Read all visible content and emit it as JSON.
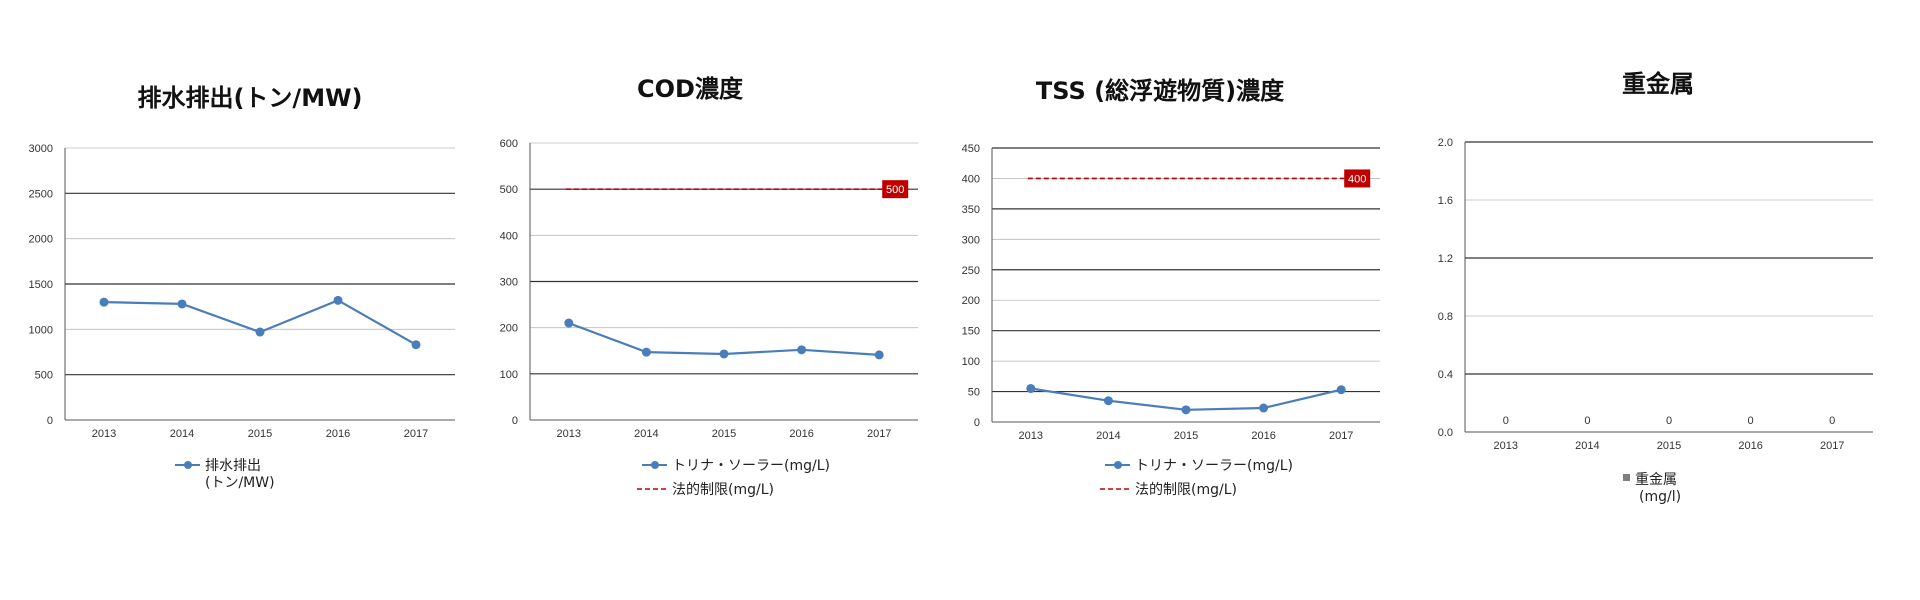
{
  "chart_data": [
    {
      "type": "line",
      "title": "排水排出(トン/MW)",
      "categories": [
        "2013",
        "2014",
        "2015",
        "2016",
        "2017"
      ],
      "ylim": [
        0,
        3000
      ],
      "yticks": [
        0,
        500,
        1000,
        1500,
        2000,
        2500,
        3000
      ],
      "grid": true,
      "legend_position": "bottom",
      "series": [
        {
          "name": "排水排出\n(トン/MW)",
          "values": [
            1300,
            1280,
            970,
            1320,
            830
          ],
          "color": "#4a7ebb",
          "style": "line-marker"
        }
      ]
    },
    {
      "type": "line",
      "title": "COD濃度",
      "categories": [
        "2013",
        "2014",
        "2015",
        "2016",
        "2017"
      ],
      "ylim": [
        0,
        600
      ],
      "yticks": [
        0,
        100,
        200,
        300,
        400,
        500,
        600
      ],
      "grid": true,
      "legend_position": "bottom",
      "series": [
        {
          "name": "トリナ・ソーラー(mg/L)",
          "values": [
            210,
            147,
            143,
            152,
            141
          ],
          "color": "#4a7ebb",
          "style": "line-marker"
        },
        {
          "name": "法的制限(mg/L)",
          "values": [
            500,
            500,
            500,
            500,
            500
          ],
          "color": "#c00000",
          "style": "dashed",
          "end_label": "500"
        }
      ]
    },
    {
      "type": "line",
      "title": "TSS (総浮遊物質)濃度",
      "categories": [
        "2013",
        "2014",
        "2015",
        "2016",
        "2017"
      ],
      "ylim": [
        0,
        450
      ],
      "yticks": [
        0,
        50,
        100,
        150,
        200,
        250,
        300,
        350,
        400,
        450
      ],
      "grid": true,
      "legend_position": "bottom",
      "series": [
        {
          "name": "トリナ・ソーラー(mg/L)",
          "values": [
            55,
            35,
            20,
            23,
            53
          ],
          "color": "#4a7ebb",
          "style": "line-marker"
        },
        {
          "name": "法的制限(mg/L)",
          "values": [
            400,
            400,
            400,
            400,
            400
          ],
          "color": "#c00000",
          "style": "dashed",
          "end_label": "400"
        }
      ]
    },
    {
      "type": "bar",
      "title": "重金属",
      "categories": [
        "2013",
        "2014",
        "2015",
        "2016",
        "2017"
      ],
      "ylim": [
        0,
        2.0
      ],
      "yticks": [
        "0.0",
        "0.4",
        "0.8",
        "1.2",
        "1.6",
        "2.0"
      ],
      "grid": true,
      "legend_position": "bottom",
      "series": [
        {
          "name": "重金属\n(mg/l)",
          "values": [
            0,
            0,
            0,
            0,
            0
          ],
          "data_labels": [
            "0",
            "0",
            "0",
            "0",
            "0"
          ],
          "color": "#808080"
        }
      ]
    }
  ]
}
